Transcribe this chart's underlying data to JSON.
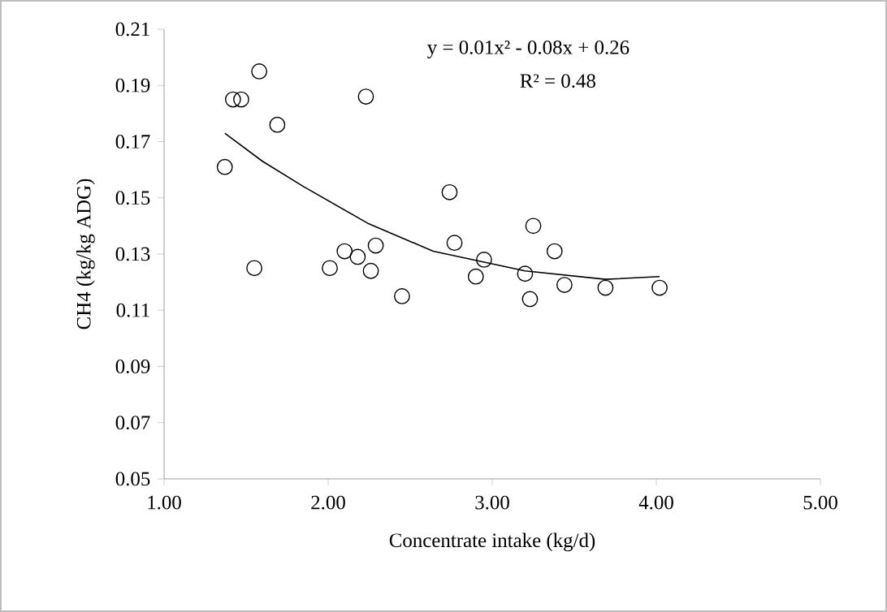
{
  "chart_data": {
    "type": "scatter",
    "xlabel": "Concentrate intake (kg/d)",
    "ylabel": "CH4 (kg/kg ADG)",
    "xlim": [
      1,
      5
    ],
    "ylim": [
      0.05,
      0.21
    ],
    "xticks": [
      {
        "value": 1,
        "label": "1.00"
      },
      {
        "value": 2,
        "label": "2.00"
      },
      {
        "value": 3,
        "label": "3.00"
      },
      {
        "value": 4,
        "label": "4.00"
      },
      {
        "value": 5,
        "label": "5.00"
      }
    ],
    "yticks": [
      {
        "value": 0.05,
        "label": "0.05"
      },
      {
        "value": 0.07,
        "label": "0.07"
      },
      {
        "value": 0.09,
        "label": "0.09"
      },
      {
        "value": 0.11,
        "label": "0.11"
      },
      {
        "value": 0.13,
        "label": "0.13"
      },
      {
        "value": 0.15,
        "label": "0.15"
      },
      {
        "value": 0.17,
        "label": "0.17"
      },
      {
        "value": 0.19,
        "label": "0.19"
      },
      {
        "value": 0.21,
        "label": "0.21"
      }
    ],
    "marker": "circle",
    "series": [
      {
        "color": "#000000",
        "x": [
          1.58,
          1.42,
          1.47,
          2.23,
          1.69,
          1.37,
          2.74,
          1.55,
          2.1,
          2.18,
          2.29,
          2.01,
          2.26,
          2.45,
          2.77,
          2.95,
          2.9,
          3.25,
          3.38,
          3.2,
          3.23,
          3.44,
          3.69,
          4.02
        ],
        "values": [
          0.195,
          0.185,
          0.185,
          0.186,
          0.176,
          0.161,
          0.152,
          0.125,
          0.131,
          0.129,
          0.133,
          0.125,
          0.124,
          0.115,
          0.134,
          0.128,
          0.122,
          0.14,
          0.131,
          0.123,
          0.114,
          0.119,
          0.118,
          0.118
        ]
      },
      {
        "type": "line",
        "marker": "none",
        "color": "#000000",
        "x": [
          1.37,
          1.6,
          1.85,
          2.24,
          2.64,
          3.2,
          3.69,
          4.02
        ],
        "values": [
          0.173,
          0.163,
          0.154,
          0.141,
          0.131,
          0.124,
          0.121,
          0.122
        ]
      }
    ],
    "annotations": [
      "y = 0.01x² - 0.08x + 0.26",
      "R² = 0.48"
    ]
  }
}
